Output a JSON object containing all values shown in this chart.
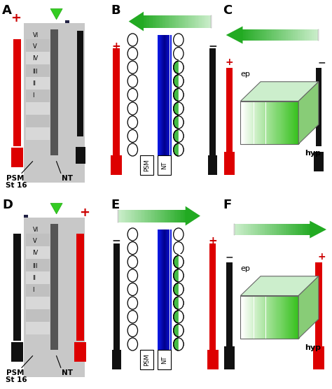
{
  "panel_labels": [
    "A",
    "B",
    "C",
    "D",
    "E",
    "F"
  ],
  "panel_label_fontsize": 13,
  "bg_color": "#ffffff",
  "somite_labels": [
    "VI",
    "V",
    "IV",
    "III",
    "II",
    "I"
  ],
  "psm_label": "PSM",
  "nt_label": "NT",
  "st16_label": "St 16",
  "ep_label": "ep",
  "hyp_label": "hyp",
  "plus_color": "#cc0000",
  "red_electrode_color": "#dd0000",
  "black_electrode_color": "#111111",
  "green_dark": "#22aa22",
  "green_mid": "#66cc44",
  "green_light": "#cceecc",
  "green_cell_color": "#44bb44",
  "blue_dark": "#1133bb",
  "blue_light": "#7799ee"
}
